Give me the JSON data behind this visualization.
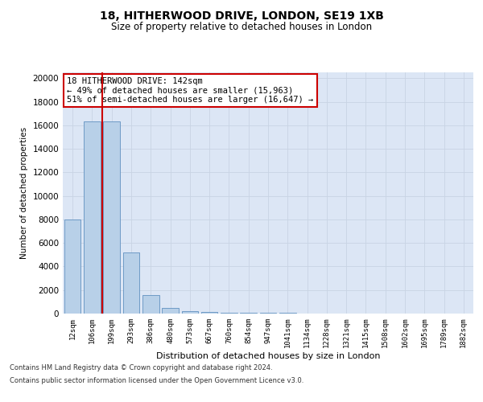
{
  "title_line1": "18, HITHERWOOD DRIVE, LONDON, SE19 1XB",
  "title_line2": "Size of property relative to detached houses in London",
  "xlabel": "Distribution of detached houses by size in London",
  "ylabel": "Number of detached properties",
  "categories": [
    "12sqm",
    "106sqm",
    "199sqm",
    "293sqm",
    "386sqm",
    "480sqm",
    "573sqm",
    "667sqm",
    "760sqm",
    "854sqm",
    "947sqm",
    "1041sqm",
    "1134sqm",
    "1228sqm",
    "1321sqm",
    "1415sqm",
    "1508sqm",
    "1602sqm",
    "1695sqm",
    "1789sqm",
    "1882sqm"
  ],
  "bar_heights": [
    8000,
    16300,
    16300,
    5200,
    1600,
    500,
    200,
    150,
    100,
    80,
    50,
    40,
    30,
    20,
    15,
    10,
    8,
    6,
    5,
    4,
    3
  ],
  "bar_color": "#b8d0e8",
  "bar_edgecolor": "#6090c0",
  "redline_color": "#cc0000",
  "redline_x": 1.5,
  "annotation_text": "18 HITHERWOOD DRIVE: 142sqm\n← 49% of detached houses are smaller (15,963)\n51% of semi-detached houses are larger (16,647) →",
  "annotation_box_color": "#ffffff",
  "annotation_box_edgecolor": "#cc0000",
  "ylim": [
    0,
    20500
  ],
  "yticks": [
    0,
    2000,
    4000,
    6000,
    8000,
    10000,
    12000,
    14000,
    16000,
    18000,
    20000
  ],
  "grid_color": "#c8d4e4",
  "background_color": "#dce6f5",
  "footnote1": "Contains HM Land Registry data © Crown copyright and database right 2024.",
  "footnote2": "Contains public sector information licensed under the Open Government Licence v3.0."
}
